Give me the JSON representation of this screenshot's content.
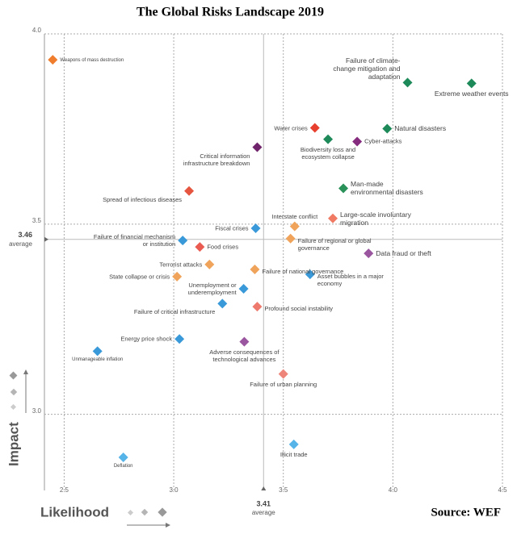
{
  "chart_data": {
    "type": "scatter",
    "title": "The Global Risks Landscape 2019",
    "source": "Source:  WEF",
    "xlabel": "Likelihood",
    "ylabel": "Impact",
    "xlim": [
      2.41,
      4.5
    ],
    "ylim": [
      2.8,
      4.0
    ],
    "xticks": [
      2.5,
      {
        "value": 3,
        "label": "3.0"
      },
      3.5,
      {
        "value": 4,
        "label": "4.0"
      },
      4.5
    ],
    "yticks": [
      {
        "value": 3,
        "label": "3.0"
      },
      3.5,
      {
        "value": 4,
        "label": "4.0"
      }
    ],
    "grid": true,
    "x_average": 3.41,
    "x_average_label": "average",
    "y_average": 3.46,
    "y_average_label": "average",
    "labels": [
      "Weapons of mass destruction",
      "Failure of climate-change mitigation and adaptation",
      "Extreme weather events",
      "Water crises",
      "Natural disasters",
      "Biodiversity loss and ecosystem collapse",
      "Cyber-attacks",
      "Critical information infrastructure breakdown",
      "Spread of infectious diseases",
      "Man-made environmental disasters",
      "Large-scale involuntary migration",
      "Interstate conflict",
      "Fiscal crises",
      "Failure of financial mechanism or institution",
      "Food crises",
      "Failure of regional or global governance",
      "Data fraud or theft",
      "Terrorist attacks",
      "Failure of national governance",
      "Asset bubbles in a major economy",
      "State collapse or crisis",
      "Unemployment or underemployment",
      "Failure of critical infrastructure",
      "Profound social instability",
      "Energy price shock",
      "Adverse consequences of technological advances",
      "Unmanageable inflation",
      "Failure of urban planning",
      "Illicit trade",
      "Deflation"
    ],
    "x": [
      2.448,
      4.067,
      4.359,
      3.644,
      3.974,
      3.704,
      3.837,
      3.381,
      3.07,
      3.774,
      3.726,
      3.552,
      3.374,
      3.041,
      3.119,
      3.533,
      3.889,
      3.163,
      3.37,
      3.622,
      3.015,
      3.319,
      3.222,
      3.381,
      3.026,
      3.322,
      2.652,
      3.5,
      3.548,
      2.77
    ],
    "values": [
      3.932,
      3.872,
      3.87,
      3.753,
      3.751,
      3.723,
      3.717,
      3.702,
      3.587,
      3.594,
      3.515,
      3.494,
      3.489,
      3.457,
      3.44,
      3.462,
      3.423,
      3.394,
      3.381,
      3.368,
      3.362,
      3.33,
      3.291,
      3.283,
      3.198,
      3.191,
      3.166,
      3.106,
      2.921,
      2.887
    ],
    "colors": [
      "#ef7d2d",
      "#1e8a5a",
      "#1e8a5a",
      "#e8402f",
      "#1e8a5a",
      "#1e8a5a",
      "#862c7e",
      "#70246b",
      "#e5553f",
      "#2a9158",
      "#f07a64",
      "#f0a35a",
      "#3a9ad9",
      "#3a9ad9",
      "#ea5c52",
      "#f0a35a",
      "#9b56a0",
      "#f0a35a",
      "#f0a35a",
      "#3a9ad9",
      "#f0a35a",
      "#3a9ad9",
      "#3a9ad9",
      "#ee7a6e",
      "#3a9ad9",
      "#9b56a0",
      "#3a9ad9",
      "#ee857a",
      "#56b4e9",
      "#56b4e9"
    ]
  }
}
